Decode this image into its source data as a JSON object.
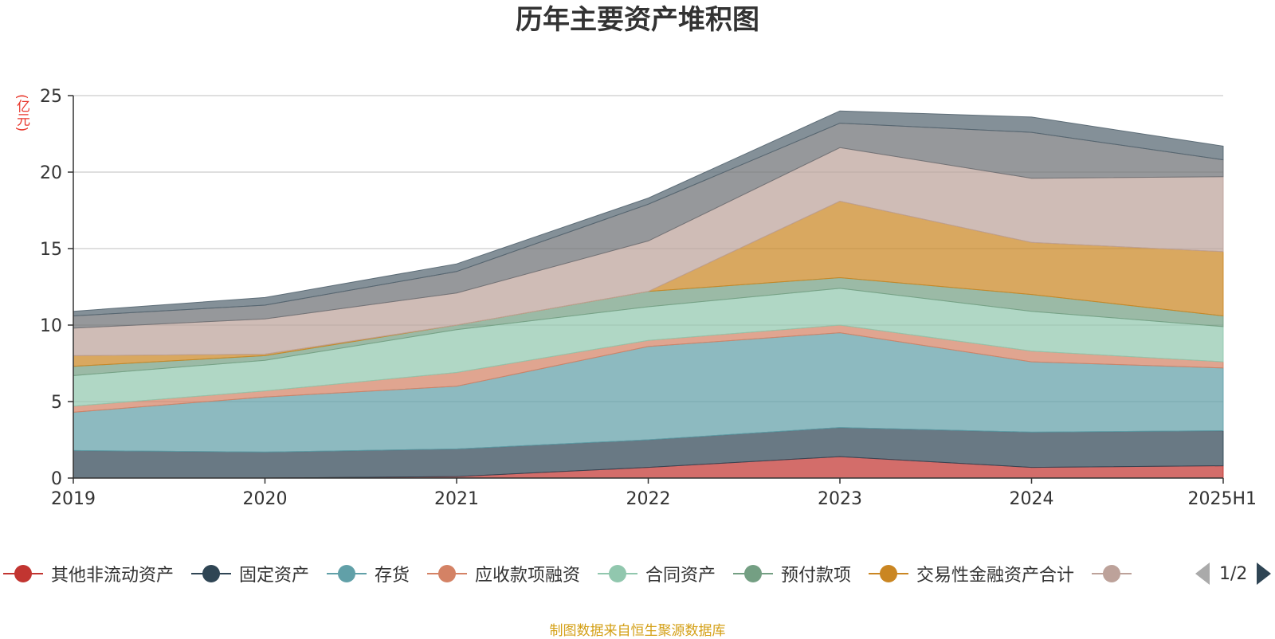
{
  "chart_data": {
    "type": "area",
    "stacked": true,
    "title": "历年主要资产堆积图",
    "ylabel": "(亿元)",
    "xlabel": "",
    "categories": [
      "2019",
      "2020",
      "2021",
      "2022",
      "2023",
      "2024",
      "2025H1"
    ],
    "ylim": [
      0,
      25
    ],
    "yticks": [
      0,
      5,
      10,
      15,
      20,
      25
    ],
    "grid": true,
    "legend_position": "bottom",
    "series": [
      {
        "name": "其他非流动资产",
        "color": "#c23531",
        "values": [
          0.0,
          0.0,
          0.1,
          0.7,
          1.4,
          0.7,
          0.8
        ]
      },
      {
        "name": "固定资产",
        "color": "#2f4554",
        "values": [
          1.8,
          1.7,
          1.8,
          1.8,
          1.9,
          2.3,
          2.3
        ]
      },
      {
        "name": "存货",
        "color": "#61a0a8",
        "values": [
          2.5,
          3.6,
          4.1,
          6.1,
          6.2,
          4.6,
          4.1
        ]
      },
      {
        "name": "应收款项融资",
        "color": "#d48265",
        "values": [
          0.4,
          0.4,
          0.9,
          0.4,
          0.5,
          0.7,
          0.4
        ]
      },
      {
        "name": "合同资产",
        "color": "#91c7ae",
        "values": [
          2.0,
          2.0,
          2.8,
          2.2,
          2.4,
          2.6,
          2.3
        ]
      },
      {
        "name": "预付款项",
        "color": "#749f83",
        "values": [
          0.6,
          0.3,
          0.3,
          1.0,
          0.7,
          1.1,
          0.7
        ]
      },
      {
        "name": "交易性金融资产合计",
        "color": "#ca8622",
        "values": [
          0.7,
          0.1,
          0.0,
          0.0,
          5.0,
          3.4,
          4.2
        ]
      },
      {
        "name": "",
        "color": "#bda29a",
        "values": [
          1.8,
          2.3,
          2.1,
          3.3,
          3.5,
          4.2,
          4.9
        ]
      },
      {
        "name": "",
        "color": "#6e7074",
        "values": [
          0.8,
          0.9,
          1.4,
          2.4,
          1.6,
          3.0,
          1.1
        ]
      },
      {
        "name": "",
        "color": "#546570",
        "values": [
          0.3,
          0.5,
          0.5,
          0.4,
          0.8,
          1.0,
          0.9
        ]
      }
    ]
  },
  "legend": {
    "items": [
      {
        "label": "其他非流动资产",
        "color": "#c23531",
        "icon": "circle-icon"
      },
      {
        "label": "固定资产",
        "color": "#2f4554",
        "icon": "circle-icon"
      },
      {
        "label": "存货",
        "color": "#61a0a8",
        "icon": "circle-icon"
      },
      {
        "label": "应收款项融资",
        "color": "#d48265",
        "icon": "circle-icon"
      },
      {
        "label": "合同资产",
        "color": "#91c7ae",
        "icon": "circle-icon"
      },
      {
        "label": "预付款项",
        "color": "#749f83",
        "icon": "circle-icon"
      },
      {
        "label": "交易性金融资产合计",
        "color": "#ca8622",
        "icon": "circle-icon"
      },
      {
        "label": "",
        "color": "#bda29a",
        "icon": "circle-icon"
      }
    ],
    "pager": {
      "text": "1/2",
      "prev_icon": "triangle-left-icon",
      "next_icon": "triangle-right-icon"
    }
  },
  "footer": {
    "source": "制图数据来自恒生聚源数据库"
  }
}
